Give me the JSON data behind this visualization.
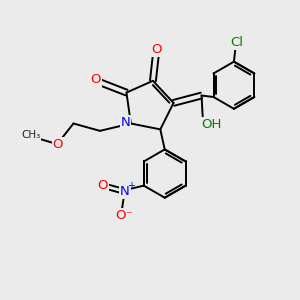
{
  "bg_color": "#ebebeb",
  "bond_color": "#000000",
  "bond_width": 1.4,
  "atom_colors": {
    "O": "#ff0000",
    "N": "#0000ff",
    "Cl": "#008000",
    "C": "#000000"
  },
  "font_size": 9.5
}
